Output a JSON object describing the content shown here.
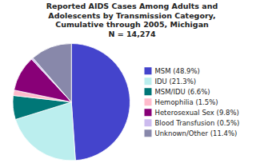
{
  "chart_data": {
    "type": "pie",
    "title": "Reported AIDS Cases Among Adults and\nAdolescents by Transmission Category,\nCumulative through 2005, Michigan\nN = 14,274",
    "categories": [
      "MSM (48.9%)",
      "IDU (21.3%)",
      "MSM/IDU (6.6%)",
      "Hemophilia (1.5%)",
      "Heterosexual Sex (9.8%)",
      "Blood Transfusion (0.5%)",
      "Unknown/Other (11.4%)"
    ],
    "values": [
      48.9,
      21.3,
      6.6,
      1.5,
      9.8,
      0.5,
      11.4
    ],
    "colors": [
      "#4444CC",
      "#BBEEEE",
      "#007777",
      "#FFBBCC",
      "#880077",
      "#CCBBEE",
      "#8888AA"
    ]
  }
}
